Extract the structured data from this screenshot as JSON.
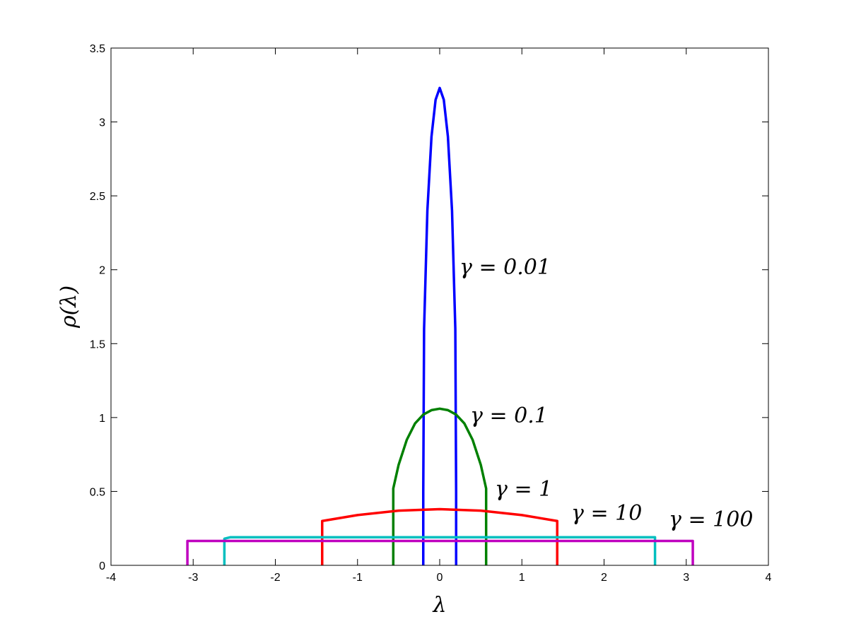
{
  "chart_data": {
    "type": "line",
    "xlabel": "λ",
    "ylabel": "ρ(λ)",
    "xlim": [
      -4,
      4
    ],
    "ylim": [
      0,
      3.5
    ],
    "xticks": [
      -4,
      -3,
      -2,
      -1,
      0,
      1,
      2,
      3,
      4
    ],
    "yticks": [
      0,
      0.5,
      1,
      1.5,
      2,
      2.5,
      3,
      3.5
    ],
    "series": [
      {
        "name": "γ = 0.01",
        "color": "#0000ff",
        "x": [
          -0.2,
          -0.2,
          -0.19,
          -0.15,
          -0.1,
          -0.05,
          0,
          0.05,
          0.1,
          0.15,
          0.19,
          0.2,
          0.2
        ],
        "values": [
          0,
          0.5,
          1.6,
          2.4,
          2.9,
          3.15,
          3.23,
          3.15,
          2.9,
          2.4,
          1.6,
          0.5,
          0
        ]
      },
      {
        "name": "γ = 0.1",
        "color": "#008000",
        "x": [
          -0.565,
          -0.565,
          -0.5,
          -0.4,
          -0.3,
          -0.2,
          -0.1,
          0,
          0.1,
          0.2,
          0.3,
          0.4,
          0.5,
          0.565,
          0.565
        ],
        "values": [
          0,
          0.52,
          0.68,
          0.85,
          0.96,
          1.02,
          1.05,
          1.06,
          1.05,
          1.02,
          0.96,
          0.85,
          0.68,
          0.52,
          0
        ]
      },
      {
        "name": "γ = 1",
        "color": "#ff0000",
        "x": [
          -1.43,
          -1.43,
          -1,
          -0.5,
          0,
          0.5,
          1,
          1.43,
          1.43
        ],
        "values": [
          0,
          0.3,
          0.34,
          0.37,
          0.38,
          0.37,
          0.34,
          0.3,
          0
        ]
      },
      {
        "name": "γ = 10",
        "color": "#00bfbf",
        "x": [
          -2.62,
          -2.62,
          -2.55,
          2.62,
          2.62
        ],
        "values": [
          0,
          0.18,
          0.19,
          0.19,
          0
        ]
      },
      {
        "name": "γ = 100",
        "color": "#bf00bf",
        "x": [
          -3.07,
          -3.07,
          3.08,
          3.08
        ],
        "values": [
          0,
          0.165,
          0.165,
          0
        ]
      }
    ]
  }
}
